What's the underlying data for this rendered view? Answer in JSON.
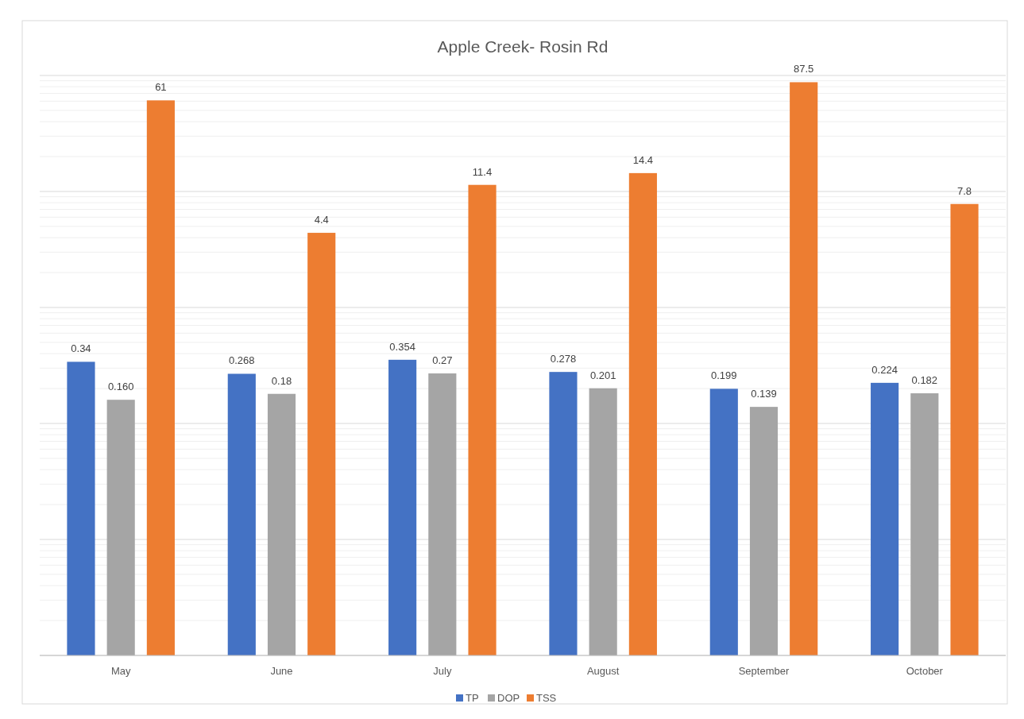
{
  "chart_data": {
    "type": "bar",
    "title": "Apple Creek- Rosin Rd",
    "categories": [
      "May",
      "June",
      "July",
      "August",
      "September",
      "October"
    ],
    "series": [
      {
        "name": "TP",
        "color": "#4472c4",
        "values": [
          0.34,
          0.268,
          0.354,
          0.278,
          0.199,
          0.224
        ],
        "value_labels": [
          "0.34",
          "0.268",
          "0.354",
          "0.278",
          "0.199",
          "0.224"
        ]
      },
      {
        "name": "DOP",
        "color": "#a5a5a5",
        "values": [
          0.16,
          0.18,
          0.27,
          0.201,
          0.139,
          0.182
        ],
        "value_labels": [
          "0.160",
          "0.18",
          "0.27",
          "0.201",
          "0.139",
          "0.182"
        ]
      },
      {
        "name": "TSS",
        "color": "#ed7d31",
        "values": [
          61,
          4.4,
          11.4,
          14.4,
          87.5,
          7.8
        ],
        "value_labels": [
          "61",
          "4.4",
          "11.4",
          "14.4",
          "87.5",
          "7.8"
        ]
      }
    ],
    "log": true,
    "ylim": [
      0.001,
      100
    ],
    "yticks": [
      {
        "value": 0.001,
        "label": null
      },
      {
        "value": 0.01,
        "label": null
      },
      {
        "value": 0.1,
        "label": null
      },
      {
        "value": 1,
        "label": null
      },
      {
        "value": 10,
        "label": null
      },
      {
        "value": 100,
        "label": null
      }
    ],
    "tick_labels": "x",
    "grid": true,
    "legend": "bottom"
  }
}
